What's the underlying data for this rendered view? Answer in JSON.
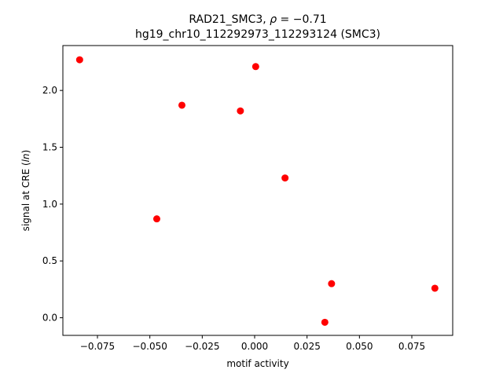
{
  "chart_data": {
    "type": "scatter",
    "title_line1": "RAD21_SMC3, ρ = −0.71",
    "title_line2": "hg19_chr10_112292973_112293124 (SMC3)",
    "xlabel": "motif activity",
    "ylabel": "signal at CRE (ln)",
    "xlim": [
      -0.0915,
      0.0945
    ],
    "ylim": [
      -0.155,
      2.395
    ],
    "x_ticks": [
      -0.075,
      -0.05,
      -0.025,
      0.0,
      0.025,
      0.05,
      0.075
    ],
    "x_tick_labels": [
      "−0.075",
      "−0.050",
      "−0.025",
      "0.000",
      "0.025",
      "0.050",
      "0.075"
    ],
    "y_ticks": [
      0.0,
      0.5,
      1.0,
      1.5,
      2.0
    ],
    "y_tick_labels": [
      "0.0",
      "0.5",
      "1.0",
      "1.5",
      "2.0"
    ],
    "grid": false,
    "marker_color": "#ff0000",
    "points": [
      {
        "x": -0.0835,
        "y": 2.27
      },
      {
        "x": 0.0005,
        "y": 2.21
      },
      {
        "x": -0.0347,
        "y": 1.87
      },
      {
        "x": -0.0068,
        "y": 1.82
      },
      {
        "x": 0.0145,
        "y": 1.23
      },
      {
        "x": -0.0467,
        "y": 0.87
      },
      {
        "x": 0.0367,
        "y": 0.3
      },
      {
        "x": 0.086,
        "y": 0.26
      },
      {
        "x": 0.0335,
        "y": -0.04
      }
    ]
  }
}
